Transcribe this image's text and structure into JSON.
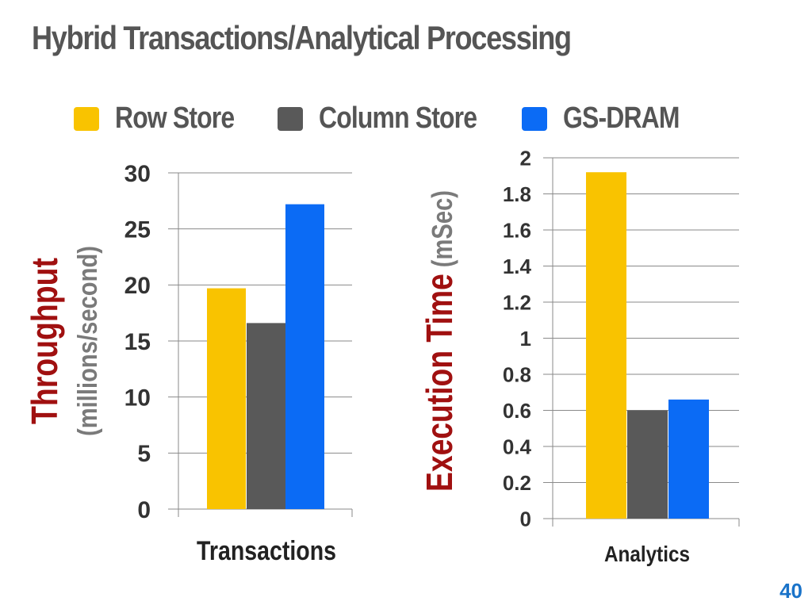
{
  "title": "Hybrid Transactions/Analytical Processing",
  "page_number": "40",
  "colors": {
    "row_store": "#f9c300",
    "column_store": "#595959",
    "gs_dram": "#0b6bf5",
    "axis_title_red": "#a01010",
    "gray_text": "#555555",
    "page_blue": "#1a73c9"
  },
  "legend": [
    {
      "label": "Row Store",
      "color": "#f9c300"
    },
    {
      "label": "Column Store",
      "color": "#595959"
    },
    {
      "label": "GS-DRAM",
      "color": "#0b6bf5"
    }
  ],
  "chart_data": [
    {
      "type": "bar",
      "title": "",
      "categories": [
        "Transactions"
      ],
      "series": [
        {
          "name": "Row Store",
          "values": [
            19.7
          ]
        },
        {
          "name": "Column Store",
          "values": [
            16.6
          ]
        },
        {
          "name": "GS-DRAM",
          "values": [
            27.2
          ]
        }
      ],
      "xlabel": "Transactions",
      "ylabel_main": "Throughput",
      "ylabel_unit": "(millions/second)",
      "ylim": [
        0,
        30
      ],
      "yticks": [
        "0",
        "5",
        "10",
        "15",
        "20",
        "25",
        "30"
      ],
      "grid": true
    },
    {
      "type": "bar",
      "title": "",
      "categories": [
        "Analytics"
      ],
      "series": [
        {
          "name": "Row Store",
          "values": [
            1.92
          ]
        },
        {
          "name": "Column Store",
          "values": [
            0.6
          ]
        },
        {
          "name": "GS-DRAM",
          "values": [
            0.66
          ]
        }
      ],
      "xlabel": "Analytics",
      "ylabel_main": "Execution Time",
      "ylabel_unit": "(mSec)",
      "ylim": [
        0,
        2
      ],
      "yticks": [
        "0",
        "0.2",
        "0.4",
        "0.6",
        "0.8",
        "1",
        "1.2",
        "1.4",
        "1.6",
        "1.8",
        "2"
      ],
      "grid": true
    }
  ]
}
